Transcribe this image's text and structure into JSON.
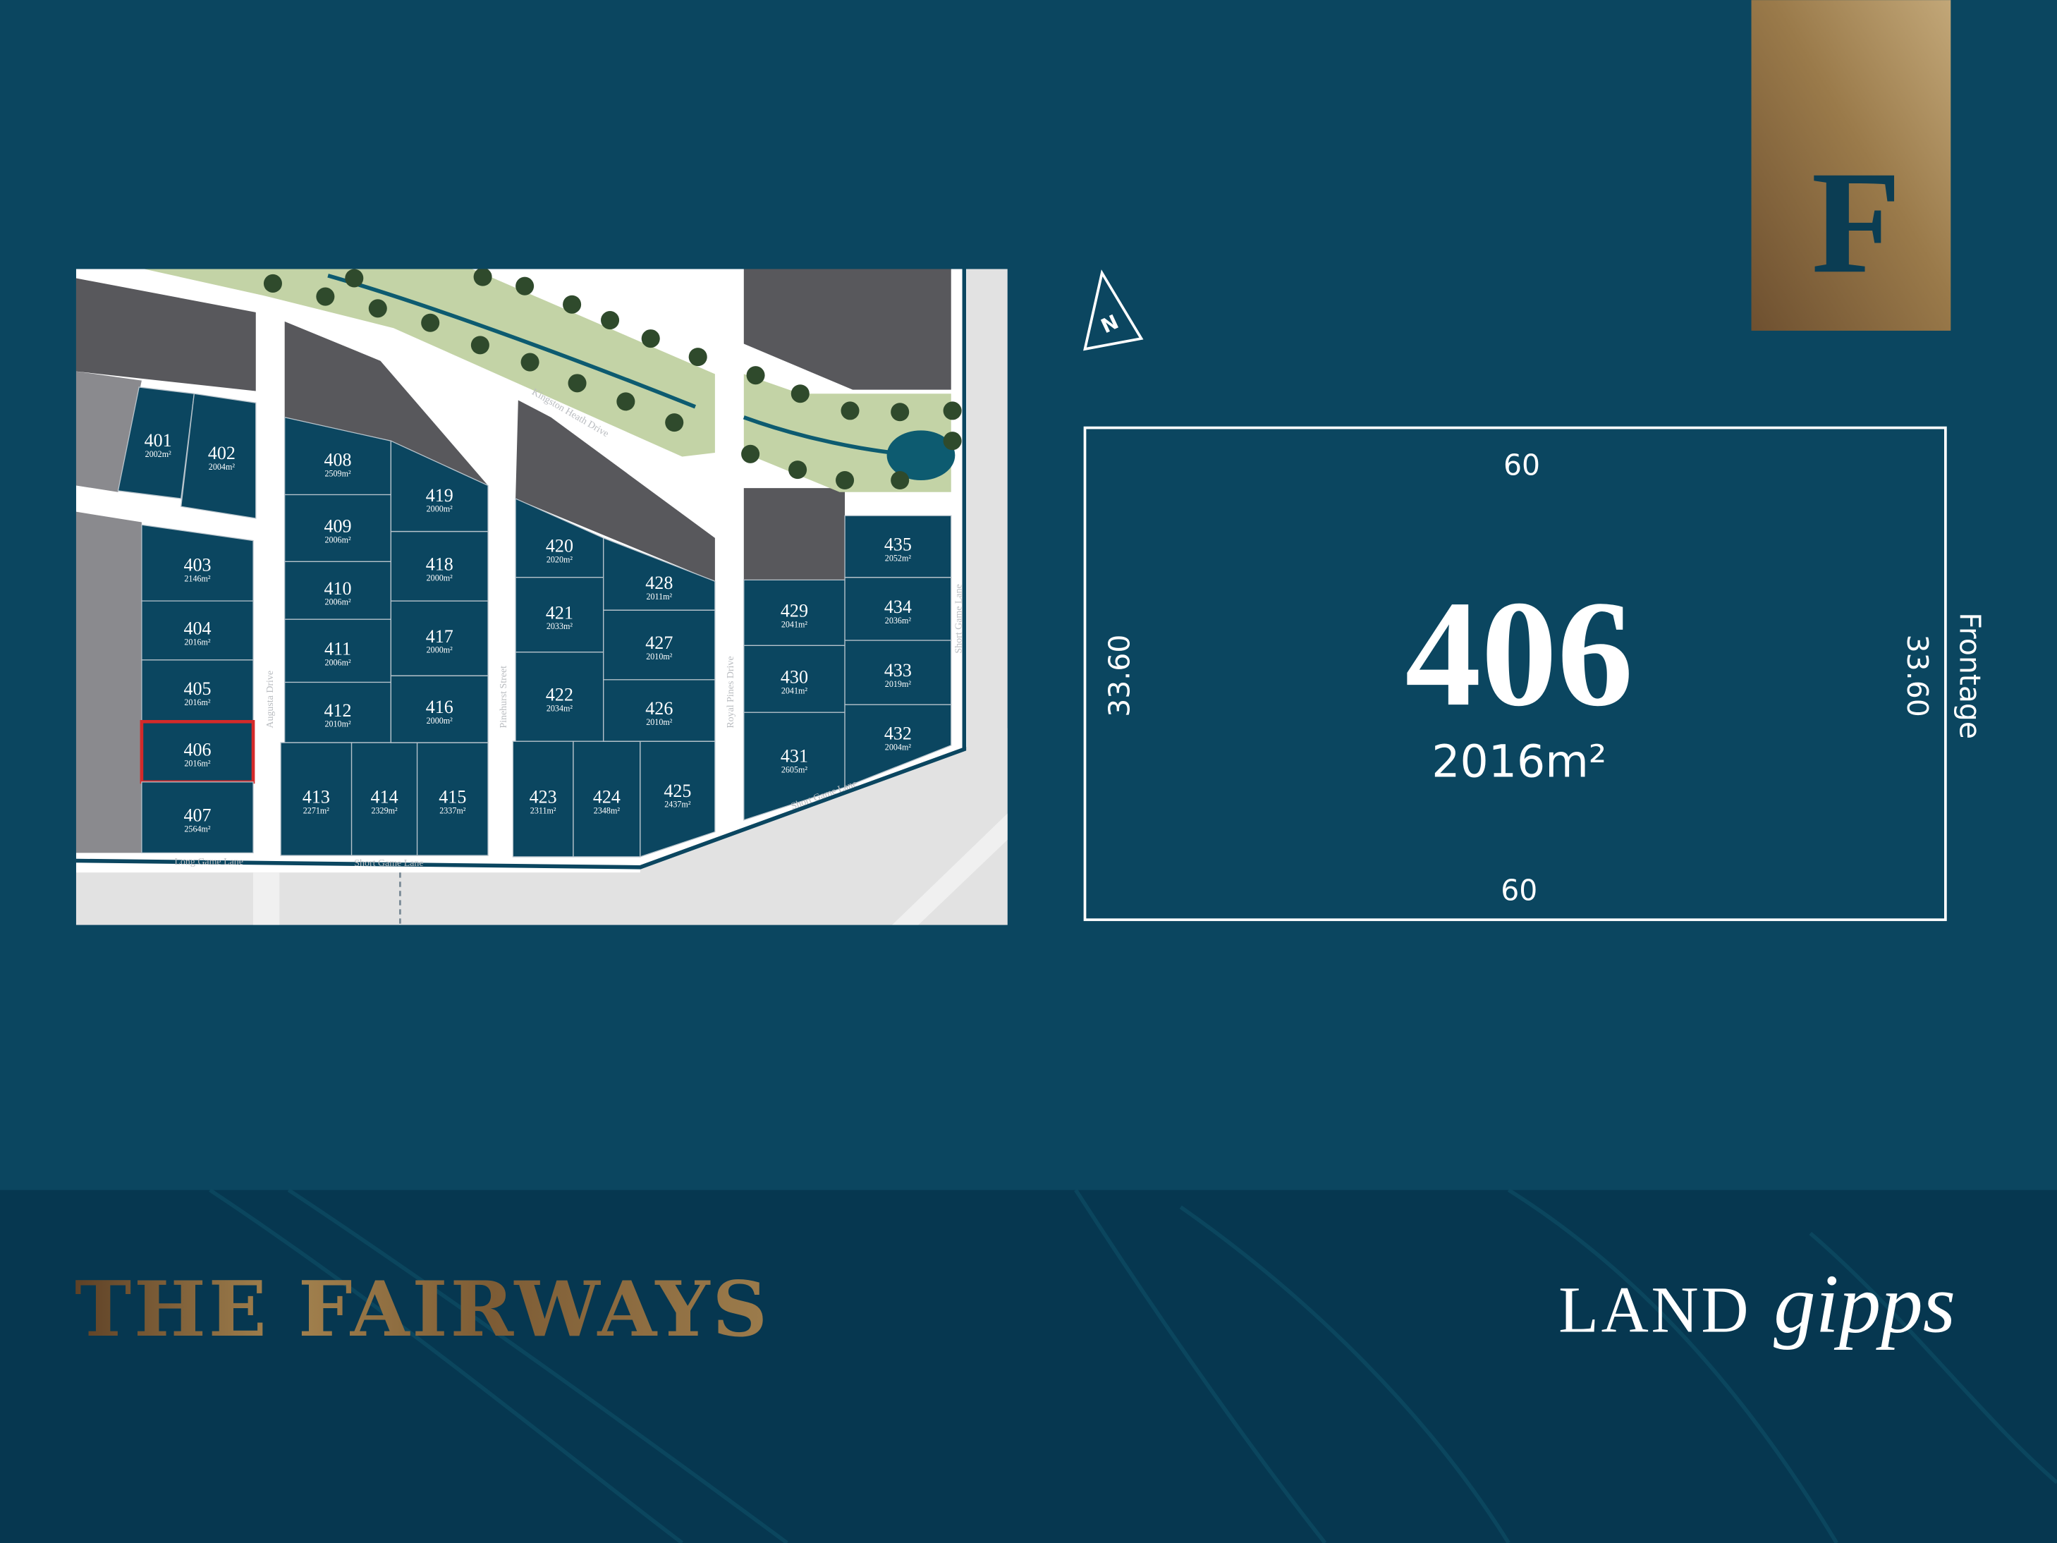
{
  "stage_badge": {
    "letter": "F"
  },
  "colors": {
    "background": "#0b4660",
    "footer": "#063750",
    "lot": "#0b4660",
    "highlight": "#d42a2a",
    "gold_dark": "#6e5030",
    "gold_light": "#c2a778",
    "park": "#c3d3a6",
    "reserve": "#58585c"
  },
  "map": {
    "streets": [
      "Kingston Heath Drive",
      "Augusta Drive",
      "Pinehurst Street",
      "Royal Pines Drive",
      "Long Game Lane",
      "Short Game Lane",
      "Short Game Lane",
      "Short Game Lane"
    ],
    "selected_lot": "406",
    "lots": [
      {
        "number": "401",
        "area": "2002m²"
      },
      {
        "number": "402",
        "area": "2004m²"
      },
      {
        "number": "403",
        "area": "2146m²"
      },
      {
        "number": "404",
        "area": "2016m²"
      },
      {
        "number": "405",
        "area": "2016m²"
      },
      {
        "number": "406",
        "area": "2016m²"
      },
      {
        "number": "407",
        "area": "2564m²"
      },
      {
        "number": "408",
        "area": "2509m²"
      },
      {
        "number": "409",
        "area": "2006m²"
      },
      {
        "number": "410",
        "area": "2006m²"
      },
      {
        "number": "411",
        "area": "2006m²"
      },
      {
        "number": "412",
        "area": "2010m²"
      },
      {
        "number": "413",
        "area": "2271m²"
      },
      {
        "number": "414",
        "area": "2329m²"
      },
      {
        "number": "415",
        "area": "2337m²"
      },
      {
        "number": "416",
        "area": "2000m²"
      },
      {
        "number": "417",
        "area": "2000m²"
      },
      {
        "number": "418",
        "area": "2000m²"
      },
      {
        "number": "419",
        "area": "2000m²"
      },
      {
        "number": "420",
        "area": "2020m²"
      },
      {
        "number": "421",
        "area": "2033m²"
      },
      {
        "number": "422",
        "area": "2034m²"
      },
      {
        "number": "423",
        "area": "2311m²"
      },
      {
        "number": "424",
        "area": "2348m²"
      },
      {
        "number": "425",
        "area": "2437m²"
      },
      {
        "number": "426",
        "area": "2010m²"
      },
      {
        "number": "427",
        "area": "2010m²"
      },
      {
        "number": "428",
        "area": "2011m²"
      },
      {
        "number": "429",
        "area": "2041m²"
      },
      {
        "number": "430",
        "area": "2041m²"
      },
      {
        "number": "431",
        "area": "2605m²"
      },
      {
        "number": "432",
        "area": "2004m²"
      },
      {
        "number": "433",
        "area": "2019m²"
      },
      {
        "number": "434",
        "area": "2036m²"
      },
      {
        "number": "435",
        "area": "2052m²"
      }
    ]
  },
  "north_arrow": {
    "label": "N"
  },
  "lot_detail": {
    "lot_number": "406",
    "area": "2016m²",
    "top_width": "60",
    "bottom_width": "60",
    "left_depth": "33.60",
    "right_depth": "33.60",
    "frontage_label": "Frontage"
  },
  "footer": {
    "estate_name": "THE FAIRWAYS",
    "brand_word": "LAND",
    "brand_script": "gipps"
  }
}
